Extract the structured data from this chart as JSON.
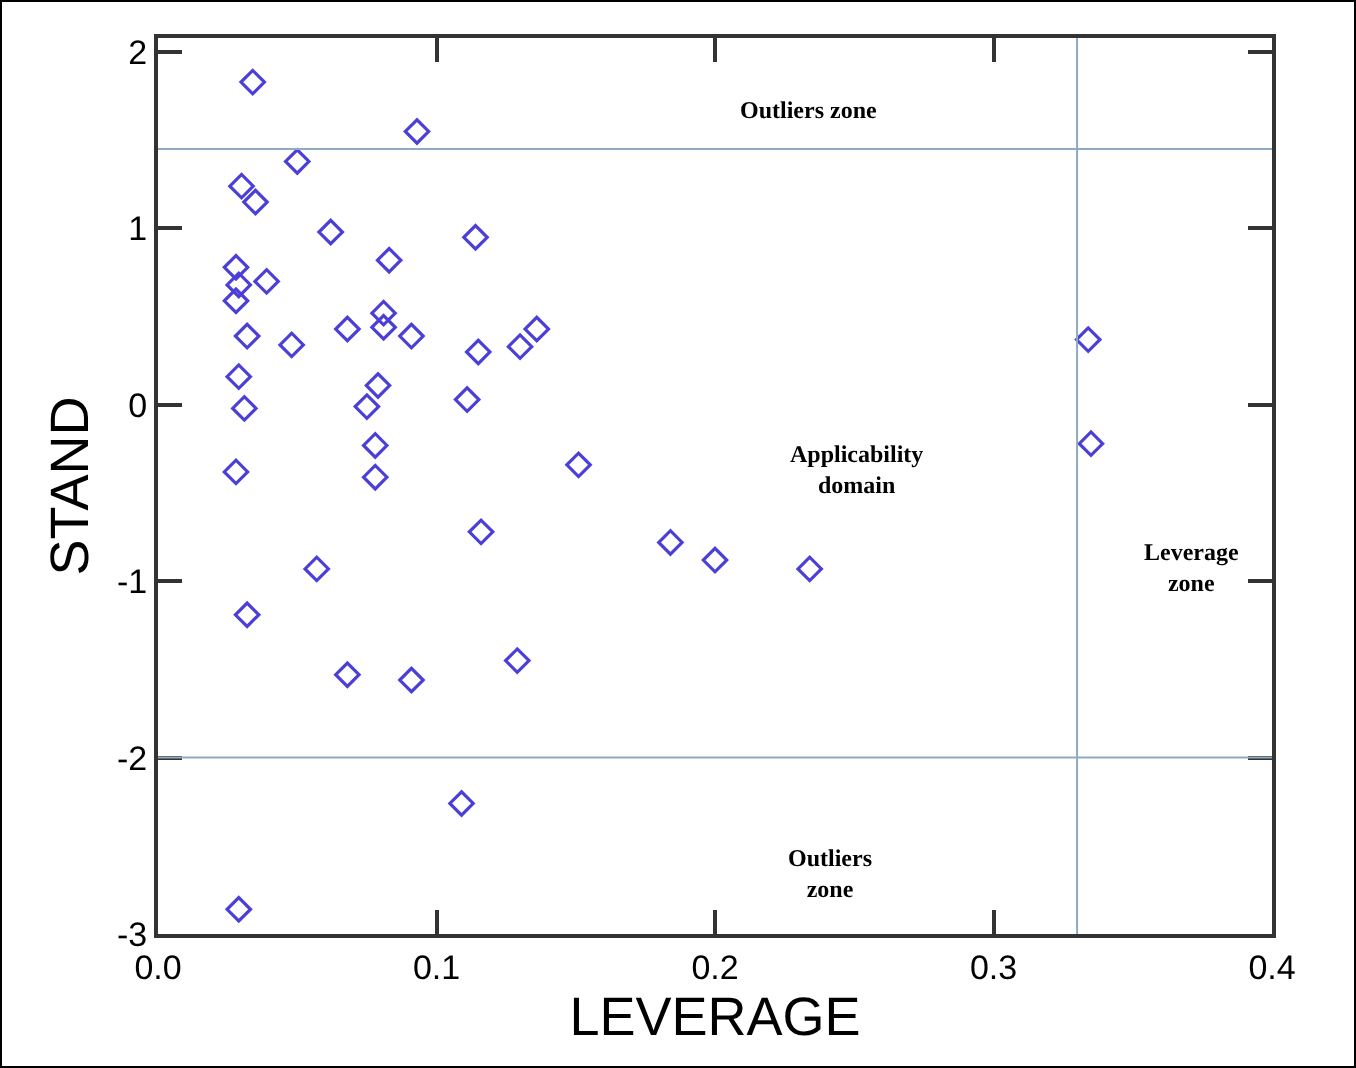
{
  "chart_data": {
    "type": "scatter",
    "xlabel": "LEVERAGE",
    "ylabel": "STAND",
    "x": [
      0.034,
      0.093,
      0.05,
      0.03,
      0.035,
      0.062,
      0.114,
      0.083,
      0.028,
      0.029,
      0.039,
      0.028,
      0.081,
      0.081,
      0.068,
      0.091,
      0.032,
      0.048,
      0.136,
      0.13,
      0.115,
      0.029,
      0.079,
      0.031,
      0.075,
      0.111,
      0.078,
      0.078,
      0.028,
      0.151,
      0.116,
      0.057,
      0.032,
      0.068,
      0.091,
      0.129,
      0.109,
      0.029,
      0.184,
      0.2,
      0.234,
      0.334,
      0.335
    ],
    "values": [
      1.83,
      1.55,
      1.38,
      1.24,
      1.15,
      0.98,
      0.95,
      0.82,
      0.78,
      0.68,
      0.7,
      0.59,
      0.52,
      0.44,
      0.43,
      0.39,
      0.39,
      0.34,
      0.43,
      0.33,
      0.3,
      0.16,
      0.11,
      -0.02,
      -0.01,
      0.03,
      -0.23,
      -0.41,
      -0.38,
      -0.34,
      -0.72,
      -0.93,
      -1.19,
      -1.53,
      -1.56,
      -1.45,
      -2.26,
      -2.86,
      -0.78,
      -0.88,
      -0.93,
      0.37,
      -0.22
    ],
    "color": "#4b3fd8",
    "marker": "diamond",
    "grid": false,
    "xlim": [
      0,
      0.4
    ],
    "xticks": [
      {
        "value": 0,
        "label": "0.0"
      },
      {
        "value": 0.1,
        "label": "0.1"
      },
      {
        "value": 0.2,
        "label": "0.2"
      },
      {
        "value": 0.3,
        "label": "0.3"
      },
      {
        "value": 0.4,
        "label": "0.4"
      }
    ],
    "ylim": [
      -3,
      2.08
    ],
    "yticks": [
      2,
      1,
      0,
      -1,
      -2,
      -3
    ],
    "ref_lines": [
      {
        "axis": "y",
        "value": 1.45,
        "color": "#8fabc4"
      },
      {
        "axis": "y",
        "value": -2,
        "color": "#8fabc4"
      },
      {
        "axis": "x",
        "value": 0.33,
        "color": "#8fabc4"
      }
    ],
    "annotations": [
      "Outliers zone",
      "Applicability\ndomain",
      "Leverage\nzone",
      "Outliers\nzone"
    ]
  }
}
